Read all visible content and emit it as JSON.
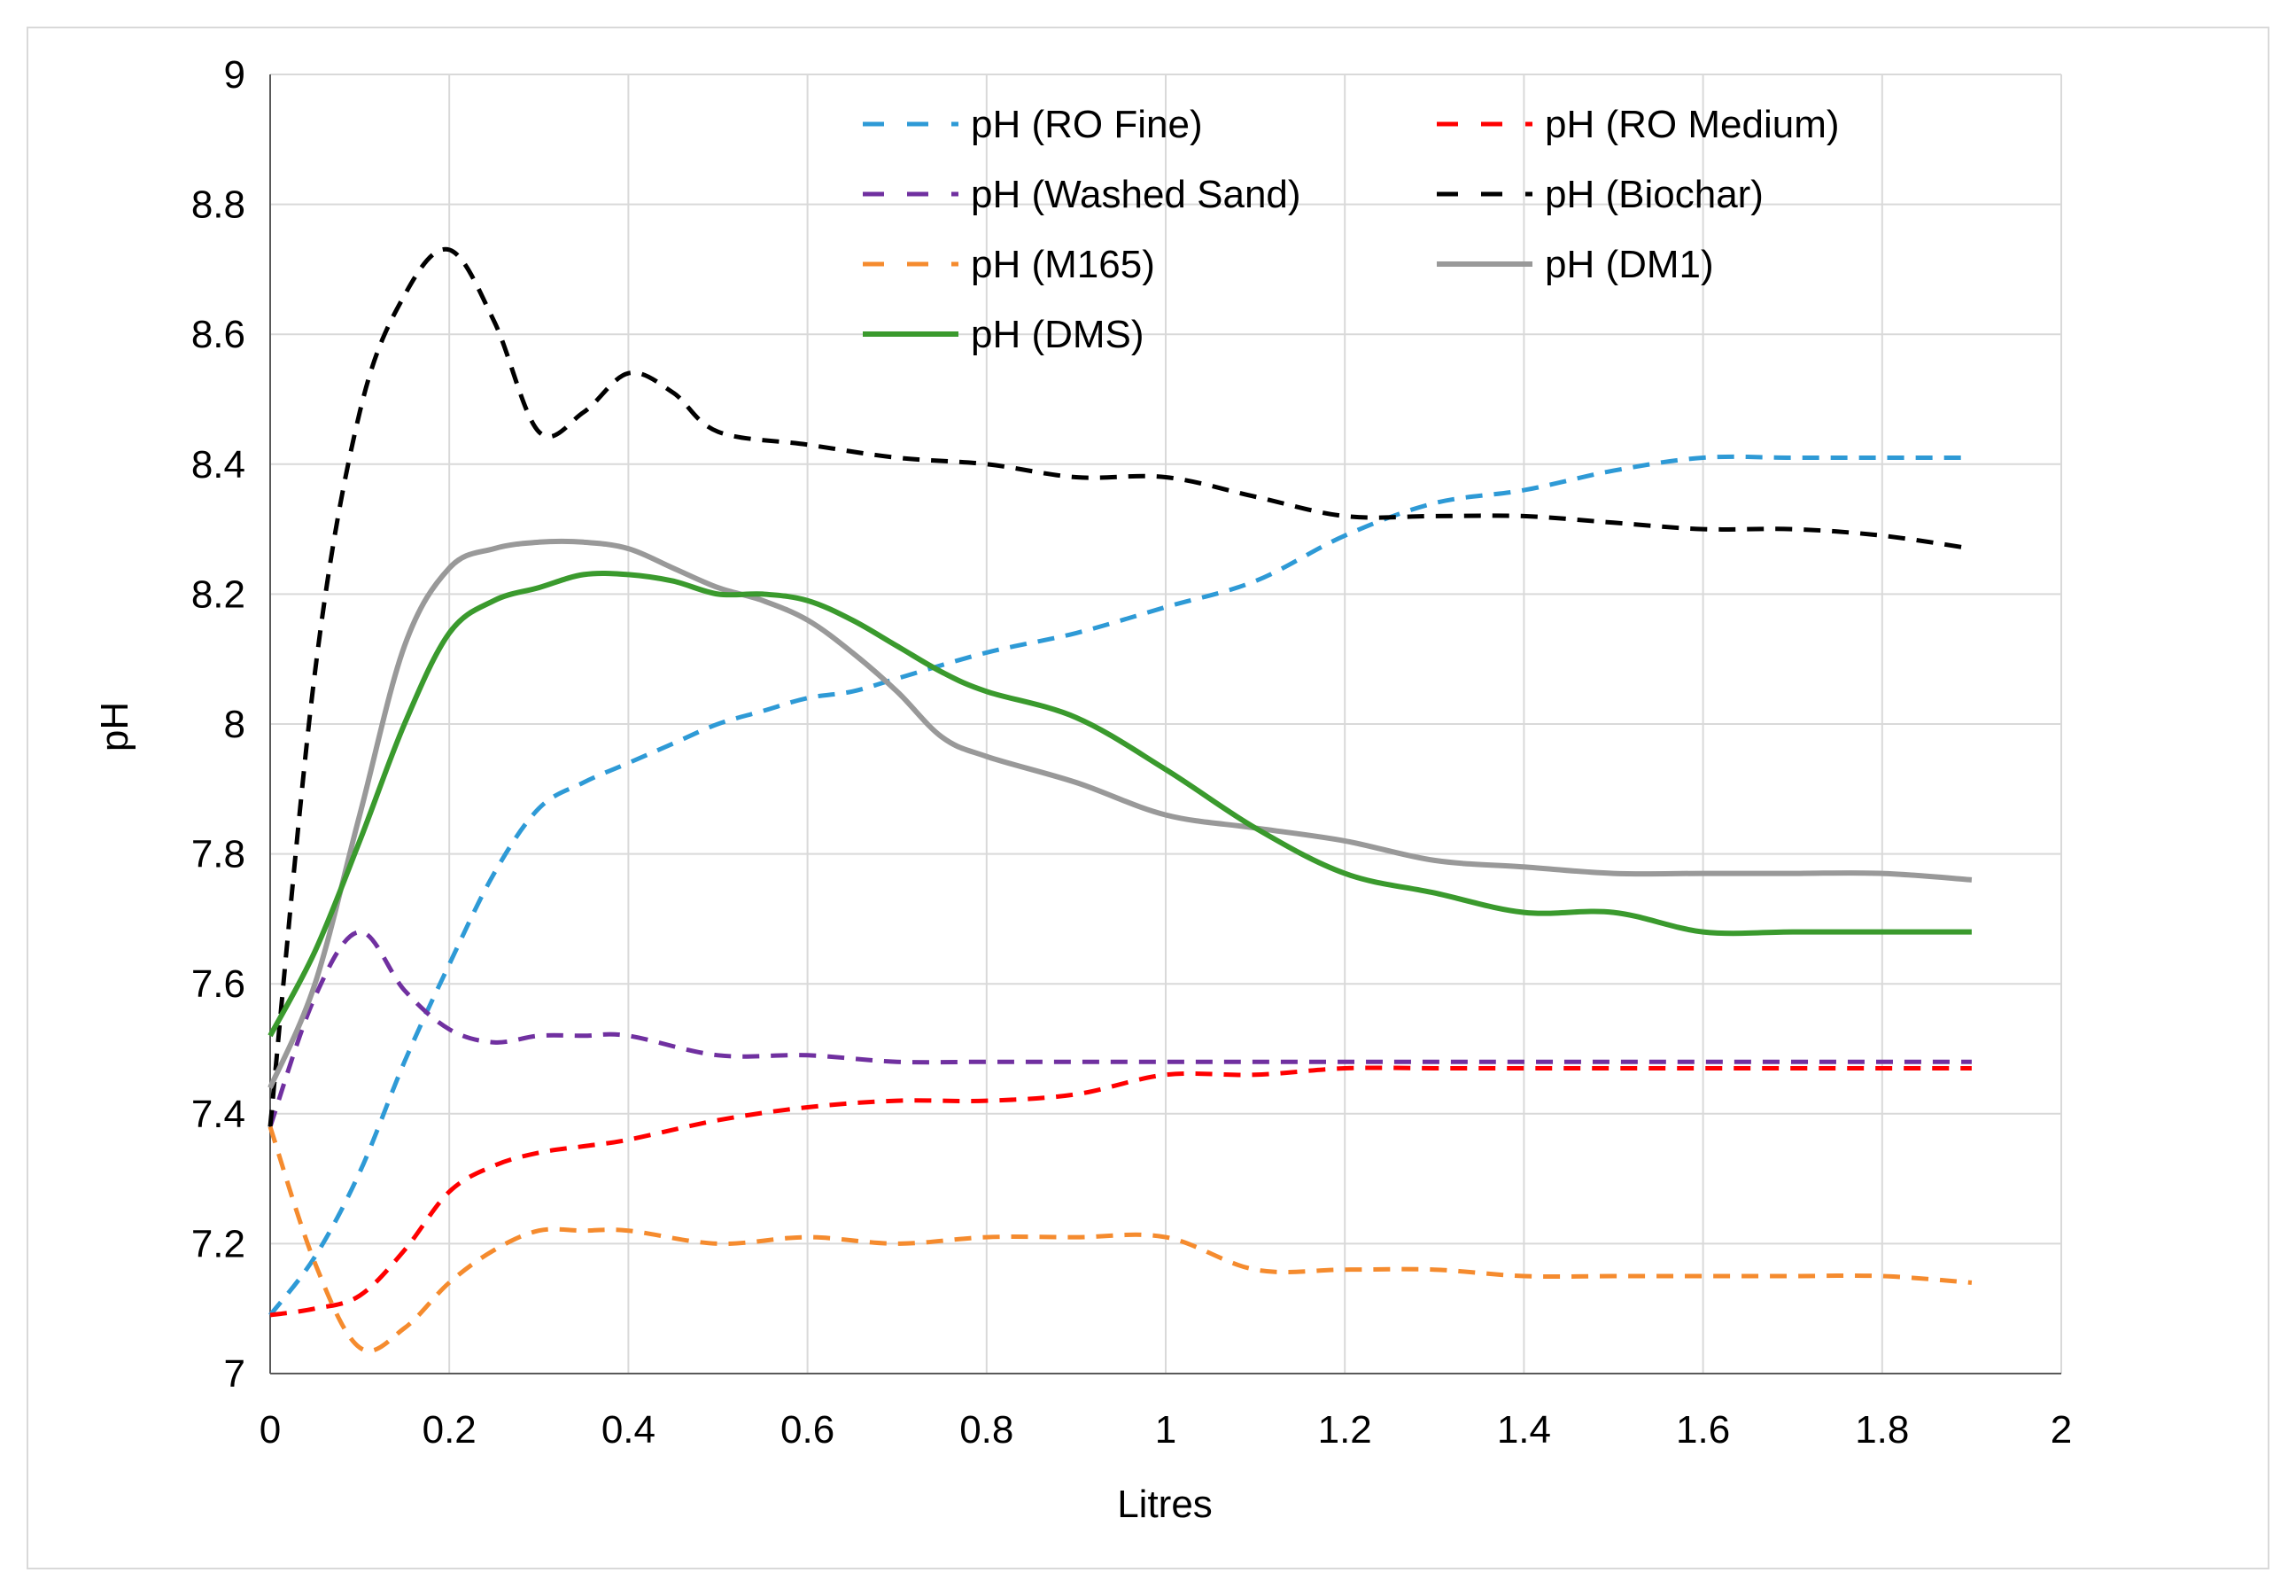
{
  "chart_data": {
    "type": "line",
    "title": "",
    "xlabel": "Litres",
    "ylabel": "pH",
    "xlim": [
      0,
      2
    ],
    "ylim": [
      7,
      9
    ],
    "xticks": [
      "0",
      "0.2",
      "0.4",
      "0.6",
      "0.8",
      "1",
      "1.2",
      "1.4",
      "1.6",
      "1.8",
      "2"
    ],
    "yticks": [
      "7",
      "7.2",
      "7.4",
      "7.6",
      "7.8",
      "8",
      "8.2",
      "8.4",
      "8.6",
      "8.8",
      "9"
    ],
    "grid": true,
    "legend_position": "top-right",
    "series": [
      {
        "name": "pH (RO Fine)",
        "color": "#2e9ad6",
        "dashed": true,
        "points": [
          [
            0,
            7.09
          ],
          [
            0.05,
            7.18
          ],
          [
            0.1,
            7.31
          ],
          [
            0.15,
            7.48
          ],
          [
            0.2,
            7.63
          ],
          [
            0.25,
            7.77
          ],
          [
            0.3,
            7.87
          ],
          [
            0.35,
            7.91
          ],
          [
            0.4,
            7.94
          ],
          [
            0.45,
            7.97
          ],
          [
            0.5,
            8.0
          ],
          [
            0.55,
            8.02
          ],
          [
            0.6,
            8.04
          ],
          [
            0.65,
            8.05
          ],
          [
            0.7,
            8.07
          ],
          [
            0.8,
            8.11
          ],
          [
            0.9,
            8.14
          ],
          [
            1.0,
            8.18
          ],
          [
            1.1,
            8.22
          ],
          [
            1.2,
            8.29
          ],
          [
            1.3,
            8.34
          ],
          [
            1.4,
            8.36
          ],
          [
            1.5,
            8.39
          ],
          [
            1.6,
            8.41
          ],
          [
            1.7,
            8.41
          ],
          [
            1.8,
            8.41
          ],
          [
            1.9,
            8.41
          ]
        ]
      },
      {
        "name": "pH (RO Medium)",
        "color": "#ff0000",
        "dashed": true,
        "points": [
          [
            0,
            7.09
          ],
          [
            0.05,
            7.1
          ],
          [
            0.1,
            7.12
          ],
          [
            0.15,
            7.19
          ],
          [
            0.2,
            7.28
          ],
          [
            0.25,
            7.32
          ],
          [
            0.3,
            7.34
          ],
          [
            0.35,
            7.35
          ],
          [
            0.4,
            7.36
          ],
          [
            0.5,
            7.39
          ],
          [
            0.6,
            7.41
          ],
          [
            0.7,
            7.42
          ],
          [
            0.8,
            7.42
          ],
          [
            0.9,
            7.43
          ],
          [
            1.0,
            7.46
          ],
          [
            1.1,
            7.46
          ],
          [
            1.2,
            7.47
          ],
          [
            1.3,
            7.47
          ],
          [
            1.4,
            7.47
          ],
          [
            1.5,
            7.47
          ],
          [
            1.6,
            7.47
          ],
          [
            1.7,
            7.47
          ],
          [
            1.8,
            7.47
          ],
          [
            1.9,
            7.47
          ]
        ]
      },
      {
        "name": "pH (Washed Sand)",
        "color": "#7030a0",
        "dashed": true,
        "points": [
          [
            0,
            7.38
          ],
          [
            0.05,
            7.58
          ],
          [
            0.1,
            7.68
          ],
          [
            0.15,
            7.59
          ],
          [
            0.2,
            7.53
          ],
          [
            0.25,
            7.51
          ],
          [
            0.3,
            7.52
          ],
          [
            0.35,
            7.52
          ],
          [
            0.4,
            7.52
          ],
          [
            0.5,
            7.49
          ],
          [
            0.6,
            7.49
          ],
          [
            0.7,
            7.48
          ],
          [
            0.8,
            7.48
          ],
          [
            0.9,
            7.48
          ],
          [
            1.0,
            7.48
          ],
          [
            1.2,
            7.48
          ],
          [
            1.4,
            7.48
          ],
          [
            1.6,
            7.48
          ],
          [
            1.8,
            7.48
          ],
          [
            1.9,
            7.48
          ]
        ]
      },
      {
        "name": "pH (Biochar)",
        "color": "#000000",
        "dashed": true,
        "points": [
          [
            0,
            7.38
          ],
          [
            0.05,
            8.08
          ],
          [
            0.1,
            8.48
          ],
          [
            0.15,
            8.66
          ],
          [
            0.2,
            8.73
          ],
          [
            0.25,
            8.62
          ],
          [
            0.3,
            8.45
          ],
          [
            0.35,
            8.48
          ],
          [
            0.4,
            8.54
          ],
          [
            0.45,
            8.51
          ],
          [
            0.5,
            8.45
          ],
          [
            0.6,
            8.43
          ],
          [
            0.7,
            8.41
          ],
          [
            0.8,
            8.4
          ],
          [
            0.9,
            8.38
          ],
          [
            1.0,
            8.38
          ],
          [
            1.1,
            8.35
          ],
          [
            1.2,
            8.32
          ],
          [
            1.3,
            8.32
          ],
          [
            1.4,
            8.32
          ],
          [
            1.5,
            8.31
          ],
          [
            1.6,
            8.3
          ],
          [
            1.7,
            8.3
          ],
          [
            1.8,
            8.29
          ],
          [
            1.9,
            8.27
          ]
        ]
      },
      {
        "name": "pH (M165)",
        "color": "#f58b2e",
        "dashed": true,
        "points": [
          [
            0,
            7.38
          ],
          [
            0.05,
            7.17
          ],
          [
            0.1,
            7.04
          ],
          [
            0.15,
            7.07
          ],
          [
            0.2,
            7.14
          ],
          [
            0.25,
            7.19
          ],
          [
            0.3,
            7.22
          ],
          [
            0.35,
            7.22
          ],
          [
            0.4,
            7.22
          ],
          [
            0.5,
            7.2
          ],
          [
            0.6,
            7.21
          ],
          [
            0.7,
            7.2
          ],
          [
            0.8,
            7.21
          ],
          [
            0.9,
            7.21
          ],
          [
            1.0,
            7.21
          ],
          [
            1.1,
            7.16
          ],
          [
            1.2,
            7.16
          ],
          [
            1.3,
            7.16
          ],
          [
            1.4,
            7.15
          ],
          [
            1.5,
            7.15
          ],
          [
            1.6,
            7.15
          ],
          [
            1.7,
            7.15
          ],
          [
            1.8,
            7.15
          ],
          [
            1.9,
            7.14
          ]
        ]
      },
      {
        "name": "pH (DM1)",
        "color": "#999999",
        "dashed": false,
        "points": [
          [
            0,
            7.44
          ],
          [
            0.05,
            7.6
          ],
          [
            0.1,
            7.86
          ],
          [
            0.15,
            8.12
          ],
          [
            0.2,
            8.24
          ],
          [
            0.25,
            8.27
          ],
          [
            0.3,
            8.28
          ],
          [
            0.35,
            8.28
          ],
          [
            0.4,
            8.27
          ],
          [
            0.45,
            8.24
          ],
          [
            0.5,
            8.21
          ],
          [
            0.55,
            8.19
          ],
          [
            0.6,
            8.16
          ],
          [
            0.65,
            8.11
          ],
          [
            0.7,
            8.05
          ],
          [
            0.75,
            7.98
          ],
          [
            0.8,
            7.95
          ],
          [
            0.9,
            7.91
          ],
          [
            1.0,
            7.86
          ],
          [
            1.1,
            7.84
          ],
          [
            1.2,
            7.82
          ],
          [
            1.3,
            7.79
          ],
          [
            1.4,
            7.78
          ],
          [
            1.5,
            7.77
          ],
          [
            1.6,
            7.77
          ],
          [
            1.7,
            7.77
          ],
          [
            1.8,
            7.77
          ],
          [
            1.9,
            7.76
          ]
        ]
      },
      {
        "name": "pH (DMS)",
        "color": "#3a9a2d",
        "dashed": false,
        "points": [
          [
            0,
            7.52
          ],
          [
            0.05,
            7.65
          ],
          [
            0.1,
            7.82
          ],
          [
            0.15,
            8.0
          ],
          [
            0.2,
            8.14
          ],
          [
            0.25,
            8.19
          ],
          [
            0.3,
            8.21
          ],
          [
            0.35,
            8.23
          ],
          [
            0.4,
            8.23
          ],
          [
            0.45,
            8.22
          ],
          [
            0.5,
            8.2
          ],
          [
            0.55,
            8.2
          ],
          [
            0.6,
            8.19
          ],
          [
            0.65,
            8.16
          ],
          [
            0.7,
            8.12
          ],
          [
            0.75,
            8.08
          ],
          [
            0.8,
            8.05
          ],
          [
            0.9,
            8.01
          ],
          [
            1.0,
            7.93
          ],
          [
            1.1,
            7.84
          ],
          [
            1.2,
            7.77
          ],
          [
            1.3,
            7.74
          ],
          [
            1.4,
            7.71
          ],
          [
            1.5,
            7.71
          ],
          [
            1.6,
            7.68
          ],
          [
            1.7,
            7.68
          ],
          [
            1.8,
            7.68
          ],
          [
            1.9,
            7.68
          ]
        ]
      }
    ]
  }
}
